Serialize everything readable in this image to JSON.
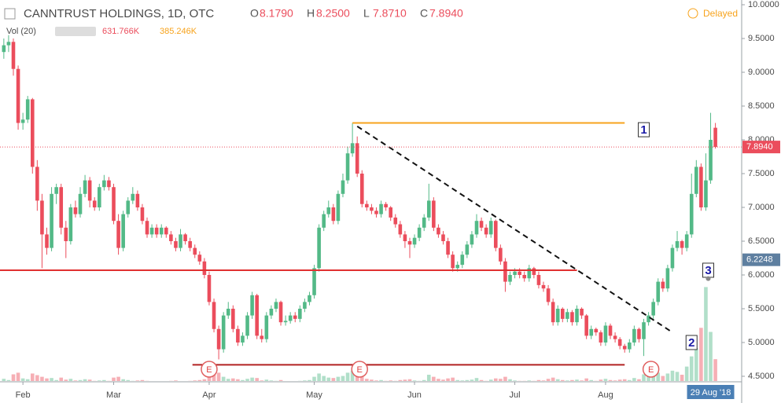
{
  "chart_data": {
    "type": "candlestick",
    "title": "CANNTRUST HOLDINGS, 1D, OTC",
    "ohlc_legend": [
      {
        "key": "O",
        "value": "8.1790"
      },
      {
        "key": "H",
        "value": "8.2500"
      },
      {
        "key": "L",
        "value": "7.8710"
      },
      {
        "key": "C",
        "value": "7.8940"
      }
    ],
    "volume_legend": {
      "name": "Vol (20)",
      "value": "631.766K",
      "ma": "385.246K"
    },
    "status": "Delayed",
    "up_color": "#53b987",
    "down_color": "#eb4d5c",
    "xlim": [
      -0.8,
      154.5
    ],
    "xticks": [
      {
        "value": 4,
        "label": "Feb"
      },
      {
        "value": 23,
        "label": "Mar"
      },
      {
        "value": 43,
        "label": "Apr"
      },
      {
        "value": 65,
        "label": "May"
      },
      {
        "value": 86,
        "label": "Jun"
      },
      {
        "value": 107,
        "label": "Jul"
      },
      {
        "value": 126,
        "label": "Aug"
      }
    ],
    "ylim": [
      4.43,
      10.07
    ],
    "yticks": [
      {
        "value": 10,
        "label": "10.0000"
      },
      {
        "value": 9.5,
        "label": "9.5000"
      },
      {
        "value": 9,
        "label": "9.0000"
      },
      {
        "value": 8.5,
        "label": "8.5000"
      },
      {
        "value": 8,
        "label": "8.0000"
      },
      {
        "value": 7.5,
        "label": "7.5000"
      },
      {
        "value": 7,
        "label": "7.0000"
      },
      {
        "value": 6.5,
        "label": "6.5000"
      },
      {
        "value": 6,
        "label": "6.0000"
      },
      {
        "value": 5.5,
        "label": "5.5000"
      },
      {
        "value": 5,
        "label": "5.0000"
      },
      {
        "value": 4.5,
        "label": "4.5000"
      }
    ],
    "last_price": {
      "value": 7.894,
      "label": "7.8940"
    },
    "marker_price": 6.2248,
    "date_label": "29 Aug '18",
    "ohlc": [
      [
        9.3,
        9.5,
        9.2,
        9.4
      ],
      [
        9.4,
        9.55,
        9.3,
        9.45
      ],
      [
        9.45,
        9.5,
        8.95,
        9.05
      ],
      [
        9.05,
        9.1,
        8.15,
        8.25
      ],
      [
        8.25,
        8.4,
        8.15,
        8.3
      ],
      [
        8.3,
        8.65,
        8.25,
        8.6
      ],
      [
        8.6,
        8.62,
        7.5,
        7.6
      ],
      [
        7.6,
        7.7,
        6.95,
        7.1
      ],
      [
        7.1,
        7.2,
        6.1,
        6.6
      ],
      [
        6.6,
        6.7,
        6.3,
        6.4
      ],
      [
        6.4,
        7.3,
        6.35,
        7.2
      ],
      [
        7.2,
        7.35,
        7.05,
        7.3
      ],
      [
        7.3,
        7.35,
        6.6,
        6.7
      ],
      [
        6.7,
        6.8,
        6.25,
        6.5
      ],
      [
        6.5,
        7.05,
        6.45,
        7.0
      ],
      [
        7.0,
        7.1,
        6.85,
        6.9
      ],
      [
        6.9,
        7.3,
        6.85,
        7.2
      ],
      [
        7.2,
        7.48,
        7.15,
        7.4
      ],
      [
        7.4,
        7.45,
        7.0,
        7.1
      ],
      [
        7.1,
        7.15,
        6.95,
        7.0
      ],
      [
        7.0,
        7.35,
        6.95,
        7.3
      ],
      [
        7.3,
        7.48,
        7.25,
        7.4
      ],
      [
        7.4,
        7.45,
        7.25,
        7.3
      ],
      [
        7.3,
        7.35,
        6.75,
        6.8
      ],
      [
        6.8,
        6.9,
        6.3,
        6.4
      ],
      [
        6.4,
        6.95,
        6.35,
        6.9
      ],
      [
        6.9,
        7.15,
        6.85,
        7.1
      ],
      [
        7.1,
        7.3,
        7.05,
        7.2
      ],
      [
        7.2,
        7.25,
        6.95,
        7.0
      ],
      [
        7.0,
        7.05,
        6.75,
        6.8
      ],
      [
        6.8,
        6.85,
        6.55,
        6.6
      ],
      [
        6.6,
        6.75,
        6.55,
        6.7
      ],
      [
        6.7,
        6.75,
        6.55,
        6.6
      ],
      [
        6.6,
        6.75,
        6.55,
        6.7
      ],
      [
        6.7,
        6.72,
        6.55,
        6.6
      ],
      [
        6.6,
        6.65,
        6.45,
        6.5
      ],
      [
        6.5,
        6.55,
        6.35,
        6.4
      ],
      [
        6.4,
        6.68,
        6.35,
        6.6
      ],
      [
        6.6,
        6.62,
        6.45,
        6.5
      ],
      [
        6.5,
        6.55,
        6.35,
        6.4
      ],
      [
        6.4,
        6.45,
        6.25,
        6.3
      ],
      [
        6.3,
        6.35,
        6.15,
        6.2
      ],
      [
        6.2,
        6.25,
        5.95,
        6.0
      ],
      [
        6.0,
        6.05,
        5.55,
        5.6
      ],
      [
        5.6,
        5.65,
        5.15,
        5.2
      ],
      [
        5.2,
        5.25,
        4.75,
        4.9
      ],
      [
        4.9,
        5.45,
        4.85,
        5.4
      ],
      [
        5.4,
        5.6,
        5.35,
        5.5
      ],
      [
        5.5,
        5.55,
        5.15,
        5.2
      ],
      [
        5.2,
        5.25,
        4.95,
        5.0
      ],
      [
        5.0,
        5.15,
        4.95,
        5.1
      ],
      [
        5.1,
        5.45,
        5.05,
        5.4
      ],
      [
        5.4,
        5.75,
        5.35,
        5.7
      ],
      [
        5.7,
        5.72,
        5.05,
        5.1
      ],
      [
        5.1,
        5.2,
        5.0,
        5.05
      ],
      [
        5.05,
        5.45,
        5.0,
        5.4
      ],
      [
        5.4,
        5.55,
        5.35,
        5.5
      ],
      [
        5.5,
        5.65,
        5.45,
        5.6
      ],
      [
        5.6,
        5.62,
        5.25,
        5.3
      ],
      [
        5.3,
        5.4,
        5.25,
        5.32
      ],
      [
        5.32,
        5.45,
        5.28,
        5.4
      ],
      [
        5.4,
        5.45,
        5.3,
        5.35
      ],
      [
        5.35,
        5.55,
        5.3,
        5.5
      ],
      [
        5.5,
        5.65,
        5.45,
        5.6
      ],
      [
        5.6,
        5.75,
        5.55,
        5.7
      ],
      [
        5.7,
        6.15,
        5.65,
        6.1
      ],
      [
        6.1,
        6.75,
        6.05,
        6.7
      ],
      [
        6.7,
        6.95,
        6.65,
        6.9
      ],
      [
        6.9,
        7.1,
        6.85,
        7.0
      ],
      [
        7.0,
        7.05,
        6.75,
        6.8
      ],
      [
        6.8,
        7.25,
        6.75,
        7.2
      ],
      [
        7.2,
        7.5,
        7.15,
        7.4
      ],
      [
        7.4,
        7.9,
        7.35,
        7.8
      ],
      [
        7.8,
        8.25,
        7.75,
        7.95
      ],
      [
        7.95,
        8.05,
        7.45,
        7.5
      ],
      [
        7.5,
        7.55,
        7.0,
        7.05
      ],
      [
        7.05,
        7.1,
        6.95,
        7.0
      ],
      [
        7.0,
        7.05,
        6.9,
        6.95
      ],
      [
        6.95,
        7.0,
        6.85,
        6.9
      ],
      [
        6.9,
        7.1,
        6.85,
        7.05
      ],
      [
        7.05,
        7.08,
        6.95,
        7.0
      ],
      [
        7.0,
        7.02,
        6.8,
        6.85
      ],
      [
        6.85,
        6.9,
        6.7,
        6.75
      ],
      [
        6.75,
        6.8,
        6.55,
        6.6
      ],
      [
        6.6,
        6.65,
        6.4,
        6.5
      ],
      [
        6.5,
        6.55,
        6.25,
        6.45
      ],
      [
        6.45,
        6.6,
        6.4,
        6.55
      ],
      [
        6.55,
        6.75,
        6.5,
        6.7
      ],
      [
        6.7,
        6.9,
        6.65,
        6.85
      ],
      [
        6.85,
        7.35,
        6.8,
        7.1
      ],
      [
        7.1,
        7.15,
        6.65,
        6.7
      ],
      [
        6.7,
        6.75,
        6.55,
        6.6
      ],
      [
        6.6,
        6.65,
        6.45,
        6.5
      ],
      [
        6.5,
        6.55,
        6.25,
        6.3
      ],
      [
        6.3,
        6.35,
        6.05,
        6.1
      ],
      [
        6.1,
        6.2,
        6.05,
        6.15
      ],
      [
        6.15,
        6.35,
        6.1,
        6.3
      ],
      [
        6.3,
        6.5,
        6.25,
        6.45
      ],
      [
        6.45,
        6.65,
        6.4,
        6.6
      ],
      [
        6.6,
        6.9,
        6.55,
        6.8
      ],
      [
        6.8,
        6.85,
        6.65,
        6.7
      ],
      [
        6.7,
        6.75,
        6.55,
        6.6
      ],
      [
        6.6,
        6.85,
        6.55,
        6.8
      ],
      [
        6.8,
        6.82,
        6.35,
        6.4
      ],
      [
        6.4,
        6.45,
        6.15,
        6.2
      ],
      [
        6.2,
        6.25,
        5.75,
        5.9
      ],
      [
        5.9,
        6.05,
        5.85,
        6.0
      ],
      [
        6.0,
        6.1,
        5.95,
        6.05
      ],
      [
        6.05,
        6.1,
        5.95,
        6.0
      ],
      [
        6.0,
        6.05,
        5.9,
        5.95
      ],
      [
        5.95,
        6.15,
        5.9,
        6.1
      ],
      [
        6.1,
        6.12,
        5.95,
        6.0
      ],
      [
        6.0,
        6.05,
        5.8,
        5.85
      ],
      [
        5.85,
        5.9,
        5.75,
        5.8
      ],
      [
        5.8,
        5.85,
        5.55,
        5.6
      ],
      [
        5.6,
        5.65,
        5.25,
        5.3
      ],
      [
        5.3,
        5.55,
        5.25,
        5.5
      ],
      [
        5.5,
        5.52,
        5.3,
        5.35
      ],
      [
        5.35,
        5.5,
        5.3,
        5.45
      ],
      [
        5.45,
        5.48,
        5.25,
        5.3
      ],
      [
        5.3,
        5.55,
        5.25,
        5.5
      ],
      [
        5.5,
        5.52,
        5.35,
        5.4
      ],
      [
        5.4,
        5.42,
        5.05,
        5.1
      ],
      [
        5.1,
        5.25,
        5.05,
        5.2
      ],
      [
        5.2,
        5.22,
        5.1,
        5.15
      ],
      [
        5.15,
        5.18,
        4.95,
        5.0
      ],
      [
        5.0,
        5.3,
        4.95,
        5.25
      ],
      [
        5.25,
        5.28,
        5.05,
        5.1
      ],
      [
        5.1,
        5.15,
        5.0,
        5.05
      ],
      [
        5.05,
        5.08,
        4.9,
        4.95
      ],
      [
        4.95,
        4.98,
        4.85,
        4.9
      ],
      [
        4.9,
        5.05,
        4.85,
        5.0
      ],
      [
        5.0,
        5.25,
        4.95,
        5.2
      ],
      [
        5.2,
        5.22,
        5.0,
        5.05
      ],
      [
        5.05,
        5.35,
        4.8,
        5.3
      ],
      [
        5.3,
        5.45,
        5.25,
        5.4
      ],
      [
        5.4,
        5.65,
        5.35,
        5.6
      ],
      [
        5.6,
        5.95,
        5.55,
        5.9
      ],
      [
        5.9,
        5.95,
        5.75,
        5.8
      ],
      [
        5.8,
        6.15,
        5.75,
        6.1
      ],
      [
        6.1,
        6.45,
        6.05,
        6.4
      ],
      [
        6.4,
        6.65,
        6.35,
        6.5
      ],
      [
        6.5,
        6.52,
        6.3,
        6.4
      ],
      [
        6.4,
        6.65,
        6.35,
        6.6
      ],
      [
        6.6,
        7.5,
        6.55,
        7.2
      ],
      [
        7.2,
        7.7,
        7.15,
        7.6
      ],
      [
        7.6,
        7.65,
        6.95,
        7.0
      ],
      [
        7.0,
        7.8,
        6.95,
        7.4
      ],
      [
        7.4,
        8.4,
        7.35,
        8.0
      ],
      [
        8.179,
        8.25,
        7.871,
        7.894
      ]
    ],
    "volume_lim": [
      0,
      2600000
    ],
    "volume": [
      150000,
      120000,
      260000,
      300000,
      160000,
      140000,
      280000,
      240000,
      200000,
      160000,
      170000,
      120000,
      180000,
      130000,
      150000,
      110000,
      120000,
      140000,
      130000,
      100000,
      110000,
      120000,
      100000,
      180000,
      200000,
      140000,
      120000,
      100000,
      110000,
      120000,
      100000,
      90000,
      90000,
      80000,
      90000,
      100000,
      110000,
      90000,
      90000,
      100000,
      110000,
      120000,
      140000,
      220000,
      250000,
      300000,
      200000,
      150000,
      160000,
      140000,
      120000,
      150000,
      180000,
      170000,
      110000,
      130000,
      110000,
      100000,
      120000,
      90000,
      90000,
      80000,
      100000,
      110000,
      120000,
      200000,
      280000,
      220000,
      180000,
      170000,
      200000,
      220000,
      300000,
      350000,
      260000,
      200000,
      150000,
      130000,
      110000,
      120000,
      100000,
      110000,
      100000,
      120000,
      130000,
      140000,
      110000,
      100000,
      120000,
      250000,
      200000,
      150000,
      130000,
      160000,
      180000,
      120000,
      110000,
      120000,
      130000,
      170000,
      120000,
      100000,
      130000,
      160000,
      150000,
      200000,
      140000,
      110000,
      100000,
      100000,
      110000,
      100000,
      120000,
      110000,
      150000,
      180000,
      140000,
      120000,
      110000,
      120000,
      130000,
      110000,
      160000,
      120000,
      100000,
      130000,
      150000,
      120000,
      110000,
      130000,
      140000,
      120000,
      170000,
      140000,
      260000,
      230000,
      250000,
      300000,
      220000,
      280000,
      350000,
      320000,
      250000,
      450000,
      700000,
      900000,
      1400000,
      2400000,
      1300000,
      631766
    ],
    "drawings": [
      {
        "kind": "hline",
        "price": 8.25,
        "from": 73,
        "to": 130,
        "color": "#f7a31c"
      },
      {
        "kind": "trend",
        "from": [
          74,
          8.2
        ],
        "to": [
          140,
          5.15
        ],
        "color": "#111111"
      },
      {
        "kind": "hline",
        "price": 6.07,
        "from": -0.8,
        "to": 120,
        "color": "#e03030"
      },
      {
        "kind": "hline",
        "price": 4.67,
        "from": 39.5,
        "to": 130,
        "color": "#b22222"
      }
    ],
    "callouts": [
      {
        "text": "1",
        "at": [
          134,
          8.15
        ]
      },
      {
        "text": "2",
        "at": [
          144,
          5.0
        ]
      },
      {
        "text": "3",
        "at": [
          147.5,
          6.07
        ]
      }
    ],
    "events": [
      {
        "text": "E",
        "at": 43
      },
      {
        "text": "E",
        "at": 74.5
      },
      {
        "text": "E",
        "at": 135.5
      }
    ]
  }
}
